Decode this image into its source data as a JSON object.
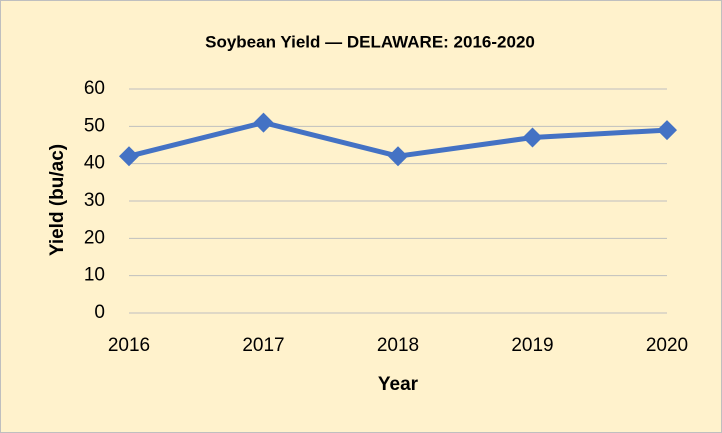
{
  "chart_data": {
    "type": "line",
    "title": "Soybean Yield — DELAWARE: 2016-2020",
    "xlabel": "Year",
    "ylabel": "Yield (bu/ac)",
    "categories": [
      "2016",
      "2017",
      "2018",
      "2019",
      "2020"
    ],
    "series": [
      {
        "name": "Yield",
        "color": "#4472c4",
        "values": [
          42,
          51,
          42,
          47,
          49
        ]
      }
    ],
    "ylim": [
      0,
      60
    ],
    "yticks": [
      0,
      10,
      20,
      30,
      40,
      50,
      60
    ],
    "grid": true,
    "background": "#fff2cc"
  }
}
